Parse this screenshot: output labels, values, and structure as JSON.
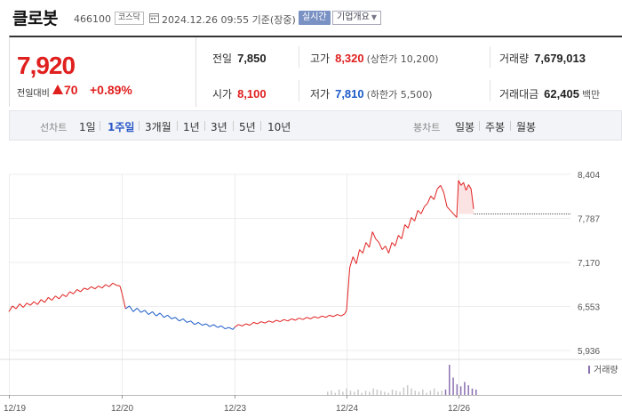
{
  "header": {
    "name": "클로봇",
    "code": "466100",
    "market": "코스닥",
    "date": "2024.12.26 09:55  기준(장중)",
    "live": "실시간",
    "company_info": "기업개요"
  },
  "quote": {
    "price": "7,920",
    "change_label": "전일대비",
    "change_value": "70",
    "change_pct": "+0.89%",
    "prev_close": {
      "label": "전일",
      "value": "7,850"
    },
    "high": {
      "label": "고가",
      "value": "8,320",
      "sub": "(상한가 10,200)"
    },
    "volume": {
      "label": "거래량",
      "value": "7,679,013"
    },
    "open": {
      "label": "시가",
      "value": "8,100"
    },
    "low": {
      "label": "저가",
      "value": "7,810",
      "sub": "(하한가 5,500)"
    },
    "amount": {
      "label": "거래대금",
      "value": "62,405",
      "unit": "백만"
    }
  },
  "line_periods": {
    "title": "선차트",
    "options": [
      "1일",
      "1주일",
      "3개월",
      "1년",
      "3년",
      "5년",
      "10년"
    ],
    "active": "1주일"
  },
  "candle_periods": {
    "title": "봉차트",
    "options": [
      "일봉",
      "주봉",
      "월봉"
    ]
  },
  "colors": {
    "up": "#e0201f",
    "down": "#1c5bc8",
    "volume": "#c9c9c9",
    "volume_recent": "#8a6fb0"
  },
  "chart_data": {
    "type": "line",
    "x_ticks": [
      "12/19",
      "12/20",
      "12/23",
      "12/24",
      "12/26"
    ],
    "y_ticks": [
      "8,404",
      "7,787",
      "7,170",
      "6,553",
      "5,936"
    ],
    "ylim": [
      5936,
      8404
    ],
    "reference_price": 7850,
    "volume_legend": "거래량",
    "series": [
      {
        "day": "12/19",
        "values": [
          6480,
          6560,
          6520,
          6590,
          6540,
          6600,
          6570,
          6620,
          6580,
          6650,
          6610,
          6680,
          6640,
          6700,
          6660,
          6720,
          6690,
          6760,
          6730,
          6790,
          6760,
          6810,
          6790,
          6830,
          6800,
          6840,
          6810,
          6860,
          6830,
          6880,
          6850,
          6840
        ]
      },
      {
        "day": "12/20",
        "values": [
          6750,
          6520,
          6560,
          6480,
          6530,
          6470,
          6500,
          6440,
          6480,
          6420,
          6460,
          6400,
          6430,
          6380,
          6400,
          6350,
          6380,
          6330,
          6350,
          6300,
          6330,
          6290,
          6310,
          6270,
          6300,
          6260,
          6280,
          6240,
          6260,
          6230
        ]
      },
      {
        "day": "12/23",
        "values": [
          6260,
          6300,
          6280,
          6310,
          6290,
          6330,
          6310,
          6340,
          6320,
          6350,
          6330,
          6360,
          6340,
          6370,
          6350,
          6380,
          6360,
          6390,
          6370,
          6400,
          6380,
          6410,
          6390,
          6420,
          6400,
          6430,
          6410,
          6440,
          6420,
          6450
        ]
      },
      {
        "day": "12/24",
        "values": [
          6500,
          7100,
          7250,
          7150,
          7350,
          7300,
          7450,
          7380,
          7600,
          7500,
          7450,
          7350,
          7400,
          7300,
          7450,
          7400,
          7550,
          7500,
          7700,
          7650,
          7800,
          7750,
          7900,
          7850,
          7950,
          8000,
          8100,
          8050,
          8200,
          8250,
          8150,
          7950,
          7900,
          7850,
          7800
        ]
      },
      {
        "day": "12/26",
        "values": [
          8320,
          8250,
          8290,
          8180,
          8260,
          8200,
          7920
        ]
      }
    ],
    "volume": [
      3,
      4,
      2,
      5,
      3,
      6,
      4,
      3,
      5,
      2,
      4,
      3,
      6,
      5,
      4,
      3,
      2,
      5,
      4,
      3,
      7,
      9,
      6,
      4,
      3,
      5,
      2,
      4,
      6,
      3,
      4,
      5,
      28,
      16,
      10,
      8,
      12,
      9,
      6,
      5
    ]
  }
}
